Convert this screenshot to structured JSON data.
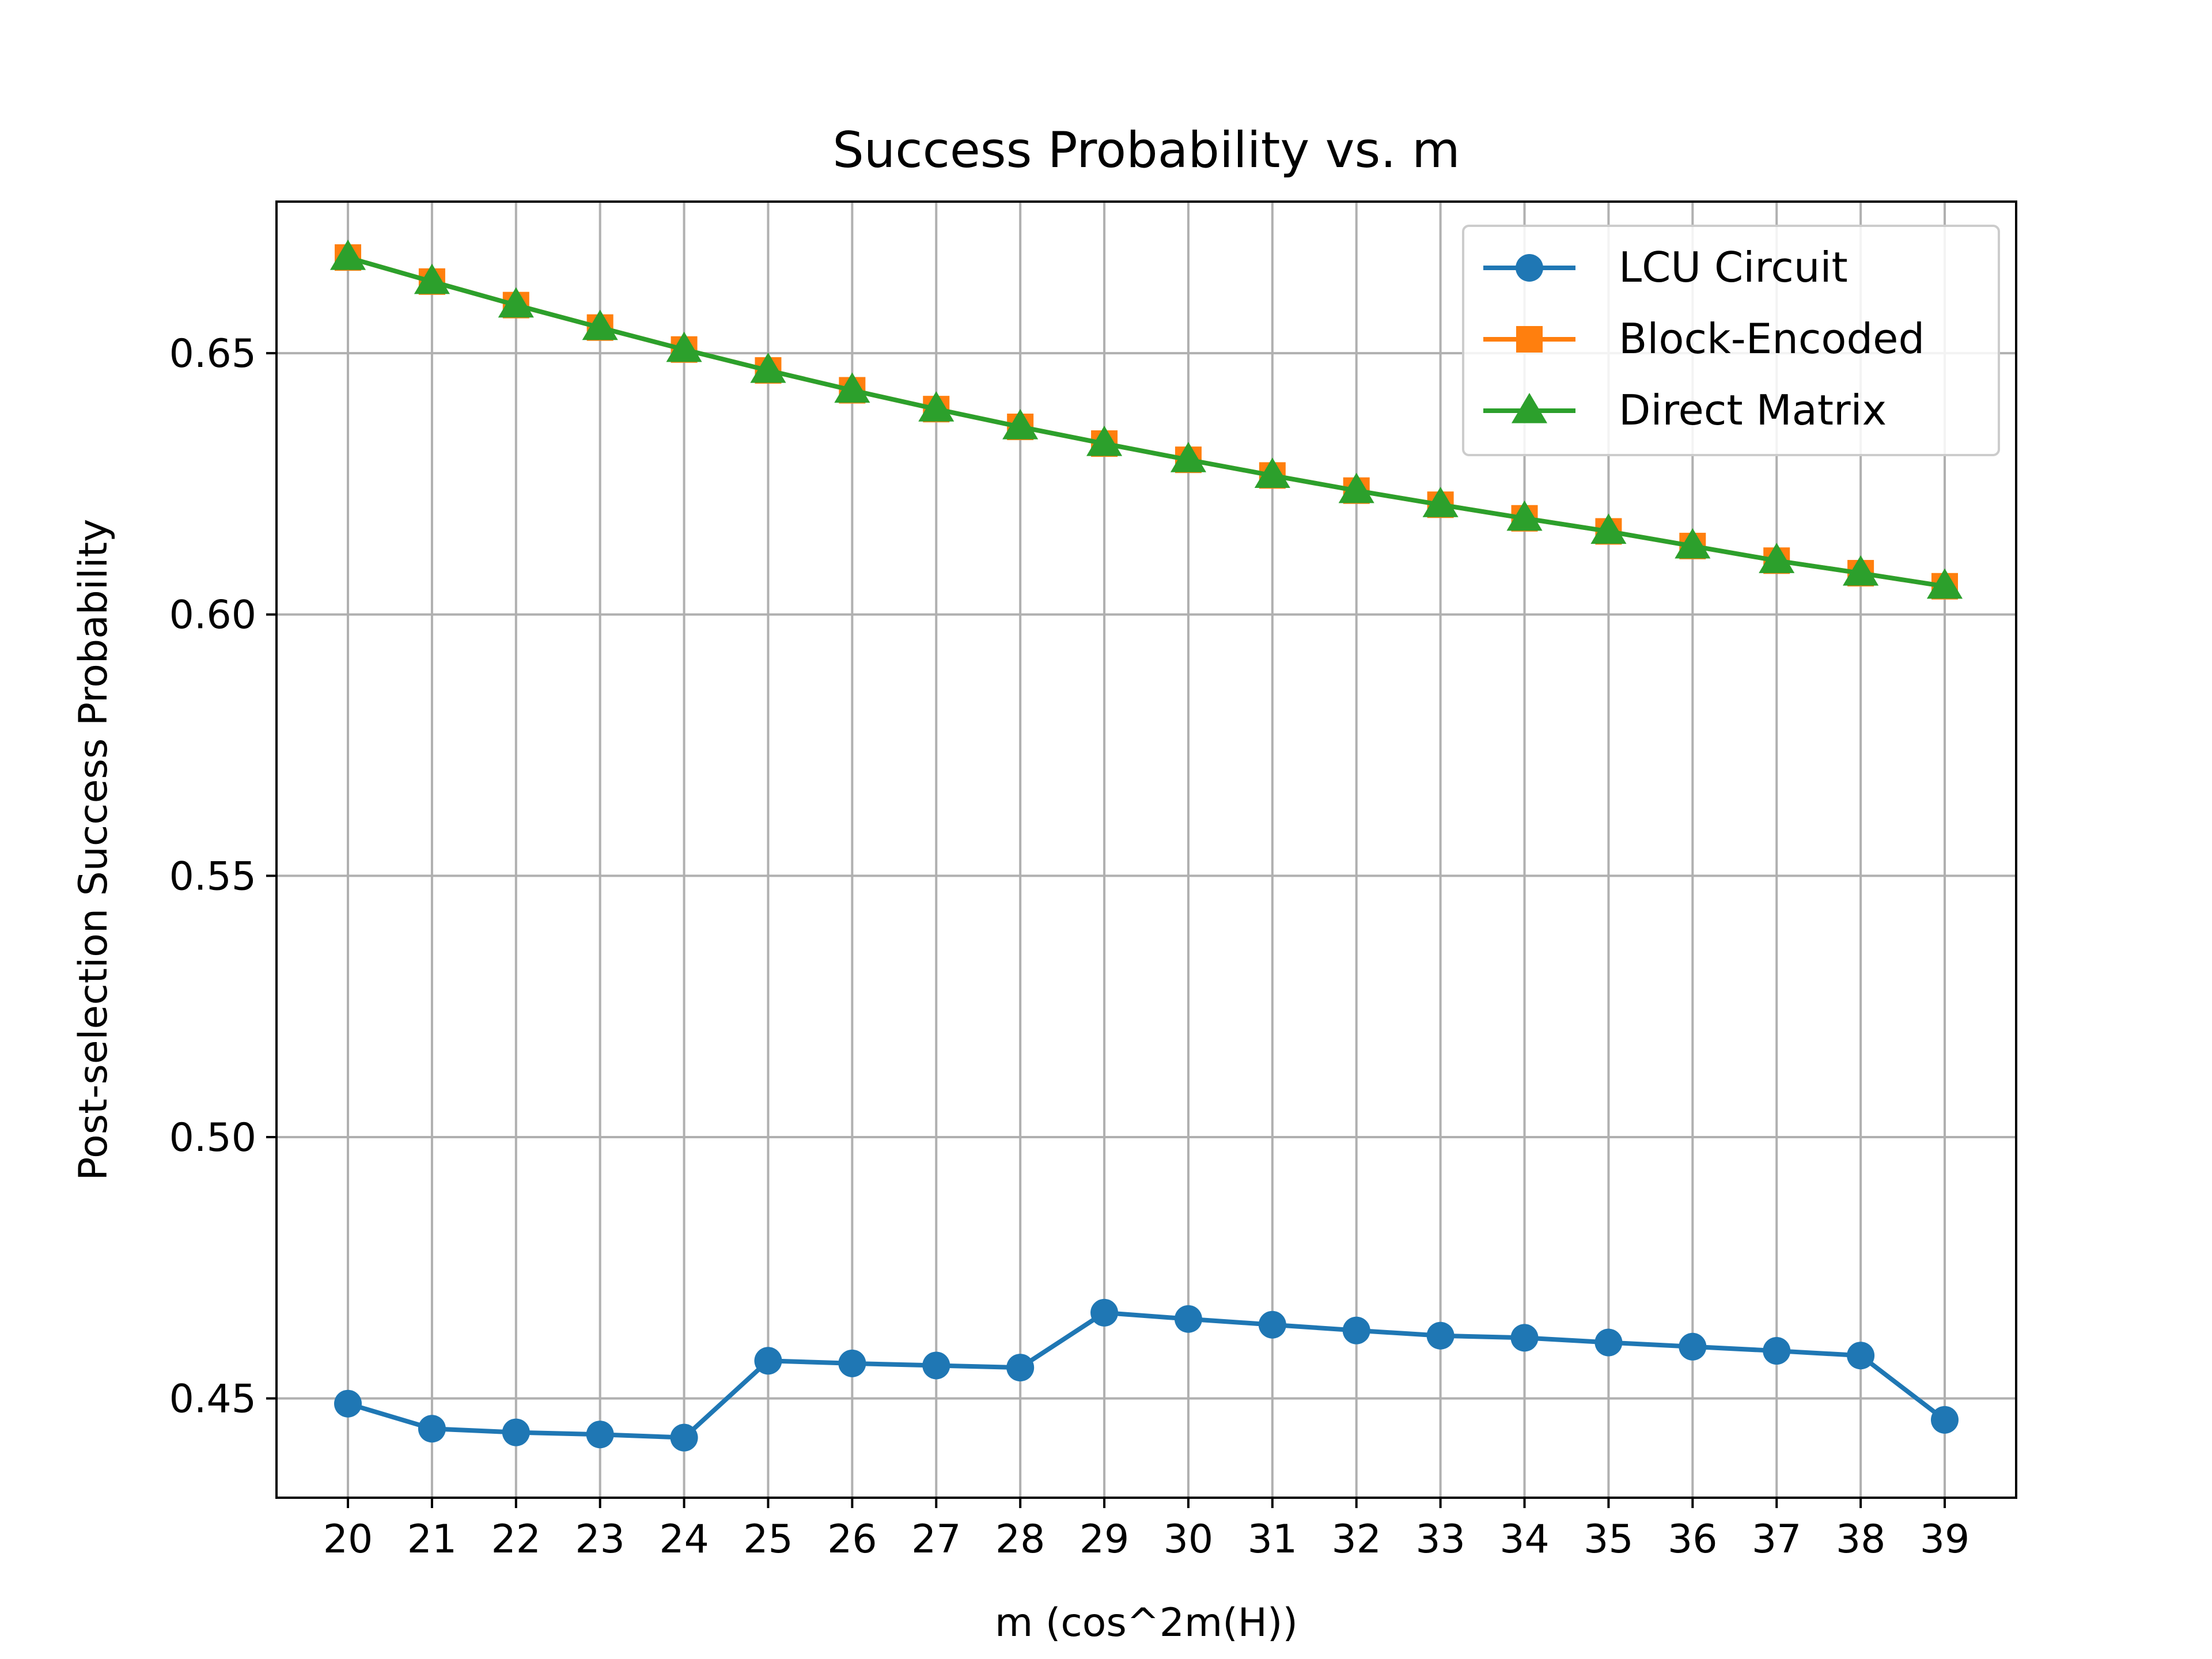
{
  "chart_data": {
    "type": "line",
    "title": "Success Probability vs. m",
    "xlabel": "m (cos^2m(H))",
    "ylabel": "Post-selection Success Probability",
    "x": [
      20,
      21,
      22,
      23,
      24,
      25,
      26,
      27,
      28,
      29,
      30,
      31,
      32,
      33,
      34,
      35,
      36,
      37,
      38,
      39
    ],
    "x_tick_labels": [
      "20",
      "21",
      "22",
      "23",
      "24",
      "25",
      "26",
      "27",
      "28",
      "29",
      "30",
      "31",
      "32",
      "33",
      "34",
      "35",
      "36",
      "37",
      "38",
      "39"
    ],
    "y_ticks": [
      0.45,
      0.5,
      0.55,
      0.6,
      0.65
    ],
    "y_tick_labels": [
      "0.45",
      "0.50",
      "0.55",
      "0.60",
      "0.65"
    ],
    "xlim": [
      19.15,
      39.85
    ],
    "ylim": [
      0.431,
      0.679
    ],
    "grid": true,
    "legend_position": "top-right",
    "series": [
      {
        "name": "LCU Circuit",
        "color": "#1f77b4",
        "marker": "circle",
        "values": [
          0.449,
          0.4442,
          0.4435,
          0.4431,
          0.4425,
          0.4572,
          0.4567,
          0.4563,
          0.4559,
          0.4664,
          0.4652,
          0.4641,
          0.463,
          0.462,
          0.4616,
          0.4607,
          0.4599,
          0.4591,
          0.4582,
          0.4459
        ]
      },
      {
        "name": "Block-Encoded",
        "color": "#ff7f0e",
        "marker": "square",
        "values": [
          0.6683,
          0.6637,
          0.6592,
          0.6549,
          0.6507,
          0.6467,
          0.6429,
          0.6393,
          0.6359,
          0.6327,
          0.6296,
          0.6266,
          0.6237,
          0.621,
          0.6184,
          0.6159,
          0.6131,
          0.6103,
          0.6079,
          0.6054
        ]
      },
      {
        "name": "Direct Matrix",
        "color": "#2ca02c",
        "marker": "triangle",
        "values": [
          0.6683,
          0.6637,
          0.6592,
          0.6549,
          0.6507,
          0.6467,
          0.6429,
          0.6393,
          0.6359,
          0.6327,
          0.6296,
          0.6266,
          0.6237,
          0.621,
          0.6184,
          0.6159,
          0.6131,
          0.6103,
          0.6079,
          0.6054
        ]
      }
    ]
  }
}
